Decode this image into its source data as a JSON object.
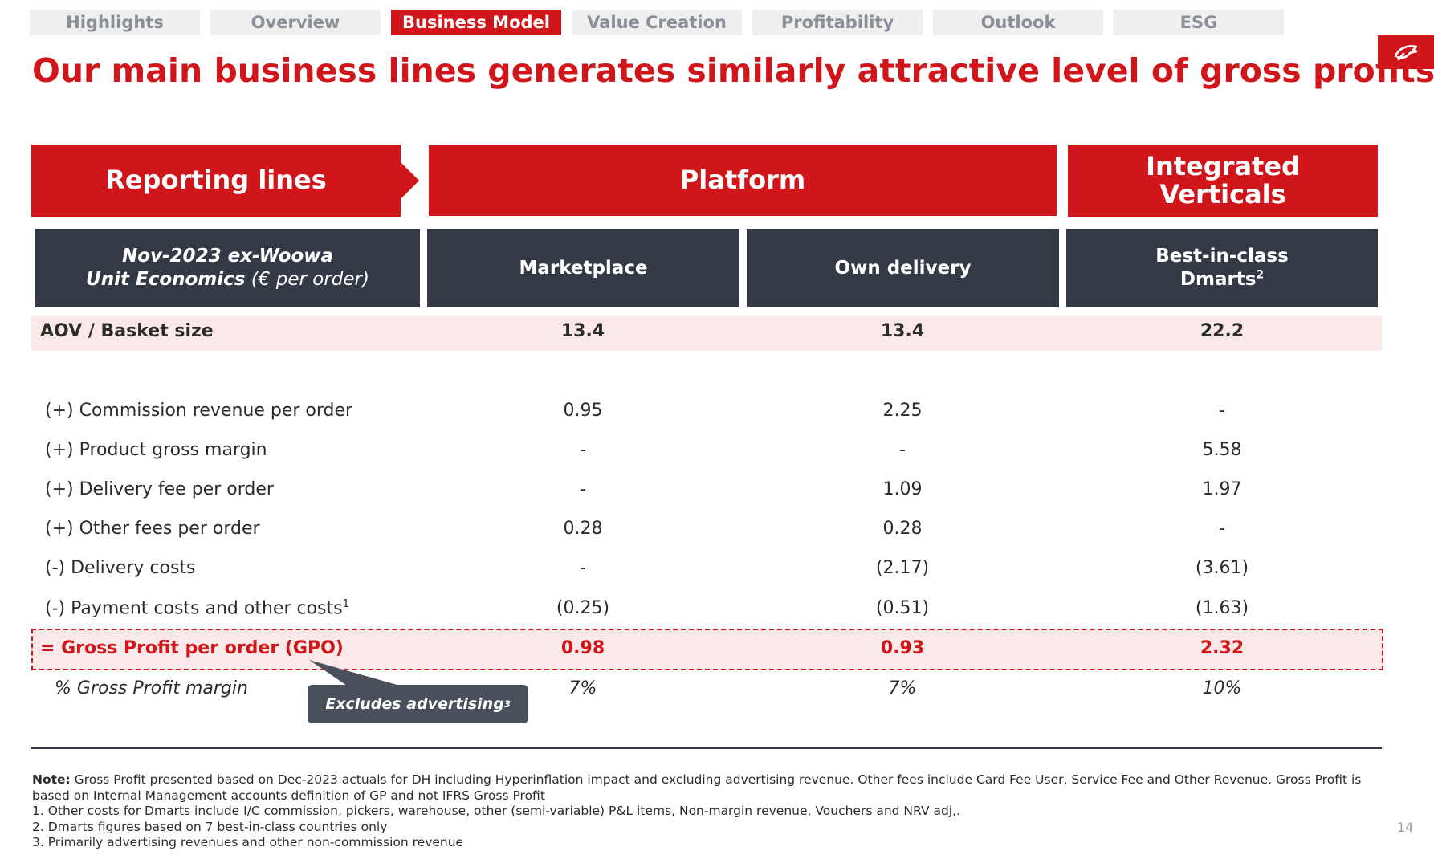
{
  "nav": {
    "tabs": [
      {
        "label": "Highlights",
        "active": false
      },
      {
        "label": "Overview",
        "active": false
      },
      {
        "label": "Business Model",
        "active": true
      },
      {
        "label": "Value Creation",
        "active": false
      },
      {
        "label": "Profitability",
        "active": false
      },
      {
        "label": "Outlook",
        "active": false
      },
      {
        "label": "ESG",
        "active": false
      }
    ]
  },
  "title": "Our main business lines generates similarly attractive level of gross profits",
  "brand": {
    "logo_icon": "delivery-hero-logo-icon",
    "accent": "#d0161b",
    "dark": "#343a45"
  },
  "header": {
    "reporting_lines": "Reporting lines",
    "platform": "Platform",
    "integrated_verticals": "Integrated Verticals"
  },
  "subheader": {
    "label_line1": "Nov-2023 ex-Woowa",
    "label_line2_bold": "Unit Economics",
    "label_line2_unit": " (€ per order)",
    "columns": [
      "Marketplace",
      "Own delivery",
      "Best-in-class Dmarts"
    ],
    "col3_line1": "Best-in-class",
    "col3_line2": "Dmarts",
    "col3_sup": "2"
  },
  "aov": {
    "label": "AOV / Basket size",
    "values": [
      "13.4",
      "13.4",
      "22.2"
    ]
  },
  "rows": [
    {
      "label": "(+) Commission revenue per order",
      "values": [
        "0.95",
        "2.25",
        "-"
      ]
    },
    {
      "label": "(+) Product gross margin",
      "values": [
        "-",
        "-",
        "5.58"
      ]
    },
    {
      "label": "(+) Delivery fee per order",
      "values": [
        "-",
        "1.09",
        "1.97"
      ]
    },
    {
      "label": "(+) Other fees per order",
      "values": [
        "0.28",
        "0.28",
        "-"
      ]
    },
    {
      "label": "(-) Delivery costs",
      "values": [
        "-",
        "(2.17)",
        "(3.61)"
      ]
    },
    {
      "label": "(-) Payment costs and other costs",
      "sup": "1",
      "values": [
        "(0.25)",
        "(0.51)",
        "(1.63)"
      ]
    }
  ],
  "gpo": {
    "label": "= Gross Profit per order (GPO)",
    "values": [
      "0.98",
      "0.93",
      "2.32"
    ]
  },
  "margin": {
    "label": "% Gross Profit margin",
    "values": [
      "7%",
      "7%",
      "10%"
    ]
  },
  "callout": {
    "text": "Excludes advertising",
    "sup": "3"
  },
  "notes": {
    "note_label": "Note:",
    "note_line1": " Gross Profit presented based on Dec-2023 actuals for DH including Hyperinflation impact and excluding advertising revenue. Other fees include Card Fee User, Service Fee and Other Revenue. Gross Profit is",
    "note_line2": "based on Internal Management accounts definition of GP and not IFRS Gross Profit",
    "footnotes": [
      "1. Other costs for Dmarts include I/C commission, pickers, warehouse, other (semi-variable) P&L items, Non-margin revenue, Vouchers and NRV adj,.",
      "2. Dmarts figures based on 7 best-in-class countries only",
      "3. Primarily advertising revenues and other non-commission revenue"
    ]
  },
  "page_number": "14"
}
